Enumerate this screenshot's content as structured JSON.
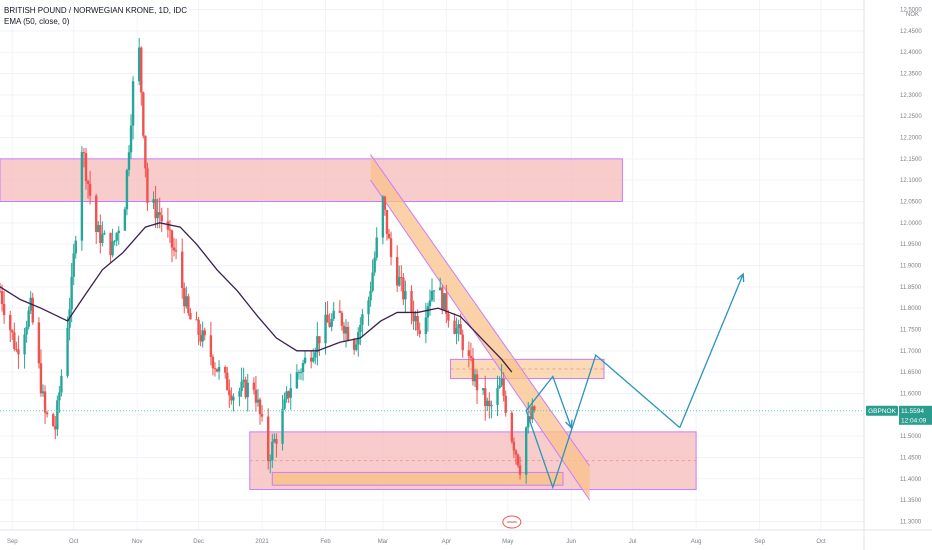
{
  "header": {
    "symbol_title": "BRITISH POUND / NORWEGIAN KRONE, 1D, IDC",
    "indicator": "EMA (50, close, 0)"
  },
  "price_axis": {
    "currency": "NOK"
  },
  "price_tag": {
    "symbol": "GBPNOK",
    "price": "11.5594",
    "countdown": "12:04:09"
  },
  "colors": {
    "up": "#26a69a",
    "down": "#ef5350",
    "ema": "#3a1f4f",
    "zone_fill": "#f7b6b6",
    "zone_border": "#c77dff",
    "channel_fill": "#f9c289",
    "projection": "#2a93bd",
    "last_price_line": "#56c9b3"
  },
  "chart_data": {
    "type": "candlestick",
    "title": "BRITISH POUND / NORWEGIAN KRONE, 1D, IDC",
    "indicator": "EMA (50, close, 0)",
    "y_axis": {
      "position": "right",
      "unit": "NOK",
      "range": [
        11.28,
        12.52
      ],
      "ticks": [
        "12.5000",
        "12.4500",
        "12.4000",
        "12.3500",
        "12.3000",
        "12.2500",
        "12.2000",
        "12.1500",
        "12.1000",
        "12.0500",
        "12.0000",
        "11.9500",
        "11.9000",
        "11.8500",
        "11.8000",
        "11.7500",
        "11.7000",
        "11.6500",
        "11.6000",
        "11.5500",
        "11.5000",
        "11.4500",
        "11.4000",
        "11.3500",
        "11.3000"
      ]
    },
    "x_axis": {
      "range": [
        "2020-08-26",
        "2021-10-22"
      ],
      "ticks": [
        {
          "date": "2020-09-01",
          "label": "Sep"
        },
        {
          "date": "2020-10-01",
          "label": "Oct"
        },
        {
          "date": "2020-11-01",
          "label": "Nov"
        },
        {
          "date": "2020-12-01",
          "label": "Dec"
        },
        {
          "date": "2021-01-01",
          "label": "2021"
        },
        {
          "date": "2021-02-01",
          "label": "Feb"
        },
        {
          "date": "2021-03-01",
          "label": "Mar"
        },
        {
          "date": "2021-04-01",
          "label": "Apr"
        },
        {
          "date": "2021-05-01",
          "label": "May"
        },
        {
          "date": "2021-06-01",
          "label": "Jun"
        },
        {
          "date": "2021-07-01",
          "label": "Jul"
        },
        {
          "date": "2021-08-01",
          "label": "Aug"
        },
        {
          "date": "2021-09-01",
          "label": "Sep"
        },
        {
          "date": "2021-10-01",
          "label": "Oct"
        }
      ]
    },
    "last_price": 11.5594,
    "price_keypoints": [
      [
        "2020-08-26",
        11.84
      ],
      [
        "2020-09-03",
        11.7
      ],
      [
        "2020-09-10",
        11.8
      ],
      [
        "2020-09-17",
        11.55
      ],
      [
        "2020-09-22",
        11.52
      ],
      [
        "2020-09-30",
        11.85
      ],
      [
        "2020-10-05",
        12.18
      ],
      [
        "2020-10-12",
        11.98
      ],
      [
        "2020-10-20",
        11.94
      ],
      [
        "2020-10-26",
        12.05
      ],
      [
        "2020-10-30",
        12.32
      ],
      [
        "2020-11-02",
        12.4
      ],
      [
        "2020-11-06",
        12.05
      ],
      [
        "2020-11-12",
        12.02
      ],
      [
        "2020-11-20",
        11.92
      ],
      [
        "2020-11-26",
        11.78
      ],
      [
        "2020-12-04",
        11.72
      ],
      [
        "2020-12-11",
        11.65
      ],
      [
        "2020-12-18",
        11.6
      ],
      [
        "2020-12-28",
        11.62
      ],
      [
        "2021-01-04",
        11.45
      ],
      [
        "2021-01-08",
        11.5
      ],
      [
        "2021-01-15",
        11.62
      ],
      [
        "2021-01-25",
        11.7
      ],
      [
        "2021-02-01",
        11.76
      ],
      [
        "2021-02-08",
        11.78
      ],
      [
        "2021-02-15",
        11.72
      ],
      [
        "2021-02-22",
        11.82
      ],
      [
        "2021-03-01",
        12.05
      ],
      [
        "2021-03-05",
        11.92
      ],
      [
        "2021-03-12",
        11.82
      ],
      [
        "2021-03-19",
        11.76
      ],
      [
        "2021-03-26",
        11.86
      ],
      [
        "2021-04-01",
        11.8
      ],
      [
        "2021-04-09",
        11.72
      ],
      [
        "2021-04-15",
        11.63
      ],
      [
        "2021-04-22",
        11.56
      ],
      [
        "2021-04-28",
        11.62
      ],
      [
        "2021-05-03",
        11.5
      ],
      [
        "2021-05-07",
        11.43
      ],
      [
        "2021-05-10",
        11.52
      ],
      [
        "2021-05-14",
        11.5594
      ]
    ],
    "ema_50": [
      [
        "2020-08-26",
        11.85
      ],
      [
        "2020-09-05",
        11.82
      ],
      [
        "2020-09-15",
        11.8
      ],
      [
        "2020-09-28",
        11.77
      ],
      [
        "2020-10-05",
        11.82
      ],
      [
        "2020-10-15",
        11.89
      ],
      [
        "2020-10-25",
        11.93
      ],
      [
        "2020-11-05",
        11.99
      ],
      [
        "2020-11-12",
        12.0
      ],
      [
        "2020-11-22",
        11.99
      ],
      [
        "2020-11-30",
        11.95
      ],
      [
        "2020-12-10",
        11.89
      ],
      [
        "2020-12-20",
        11.84
      ],
      [
        "2020-12-30",
        11.78
      ],
      [
        "2021-01-08",
        11.73
      ],
      [
        "2021-01-18",
        11.7
      ],
      [
        "2021-01-28",
        11.7
      ],
      [
        "2021-02-08",
        11.72
      ],
      [
        "2021-02-18",
        11.73
      ],
      [
        "2021-02-28",
        11.77
      ],
      [
        "2021-03-08",
        11.79
      ],
      [
        "2021-03-18",
        11.79
      ],
      [
        "2021-03-28",
        11.8
      ],
      [
        "2021-04-08",
        11.78
      ],
      [
        "2021-04-18",
        11.73
      ],
      [
        "2021-04-28",
        11.68
      ],
      [
        "2021-05-03",
        11.65
      ]
    ],
    "drawings": {
      "resistance_zone": {
        "from": "2020-08-26",
        "to": "2021-06-26",
        "price_range": [
          12.05,
          12.15
        ]
      },
      "support_zone": {
        "from": "2020-12-26",
        "to": "2021-08-01",
        "price_range": [
          11.375,
          11.51
        ]
      },
      "support_inner_band": {
        "from": "2021-01-06",
        "to": "2021-05-28",
        "price_range": [
          11.385,
          11.415
        ]
      },
      "minor_resistance_zone": {
        "from": "2021-04-03",
        "to": "2021-06-17",
        "price_range": [
          11.635,
          11.68
        ]
      },
      "descending_channel": {
        "upper_line": [
          [
            "2021-02-23",
            12.16
          ],
          [
            "2021-06-10",
            11.43
          ]
        ],
        "lower_line": [
          [
            "2021-02-23",
            12.1
          ],
          [
            "2021-06-10",
            11.35
          ]
        ]
      },
      "projection_path_1": [
        [
          "2021-05-10",
          11.56
        ],
        [
          "2021-05-23",
          11.38
        ],
        [
          "2021-06-13",
          11.69
        ],
        [
          "2021-07-24",
          11.52
        ]
      ],
      "projection_path_2": [
        [
          "2021-05-10",
          11.56
        ],
        [
          "2021-05-23",
          11.64
        ],
        [
          "2021-06-01",
          11.52
        ]
      ],
      "projection_path_3": [
        [
          "2021-07-24",
          11.52
        ],
        [
          "2021-08-24",
          11.88
        ]
      ]
    }
  }
}
